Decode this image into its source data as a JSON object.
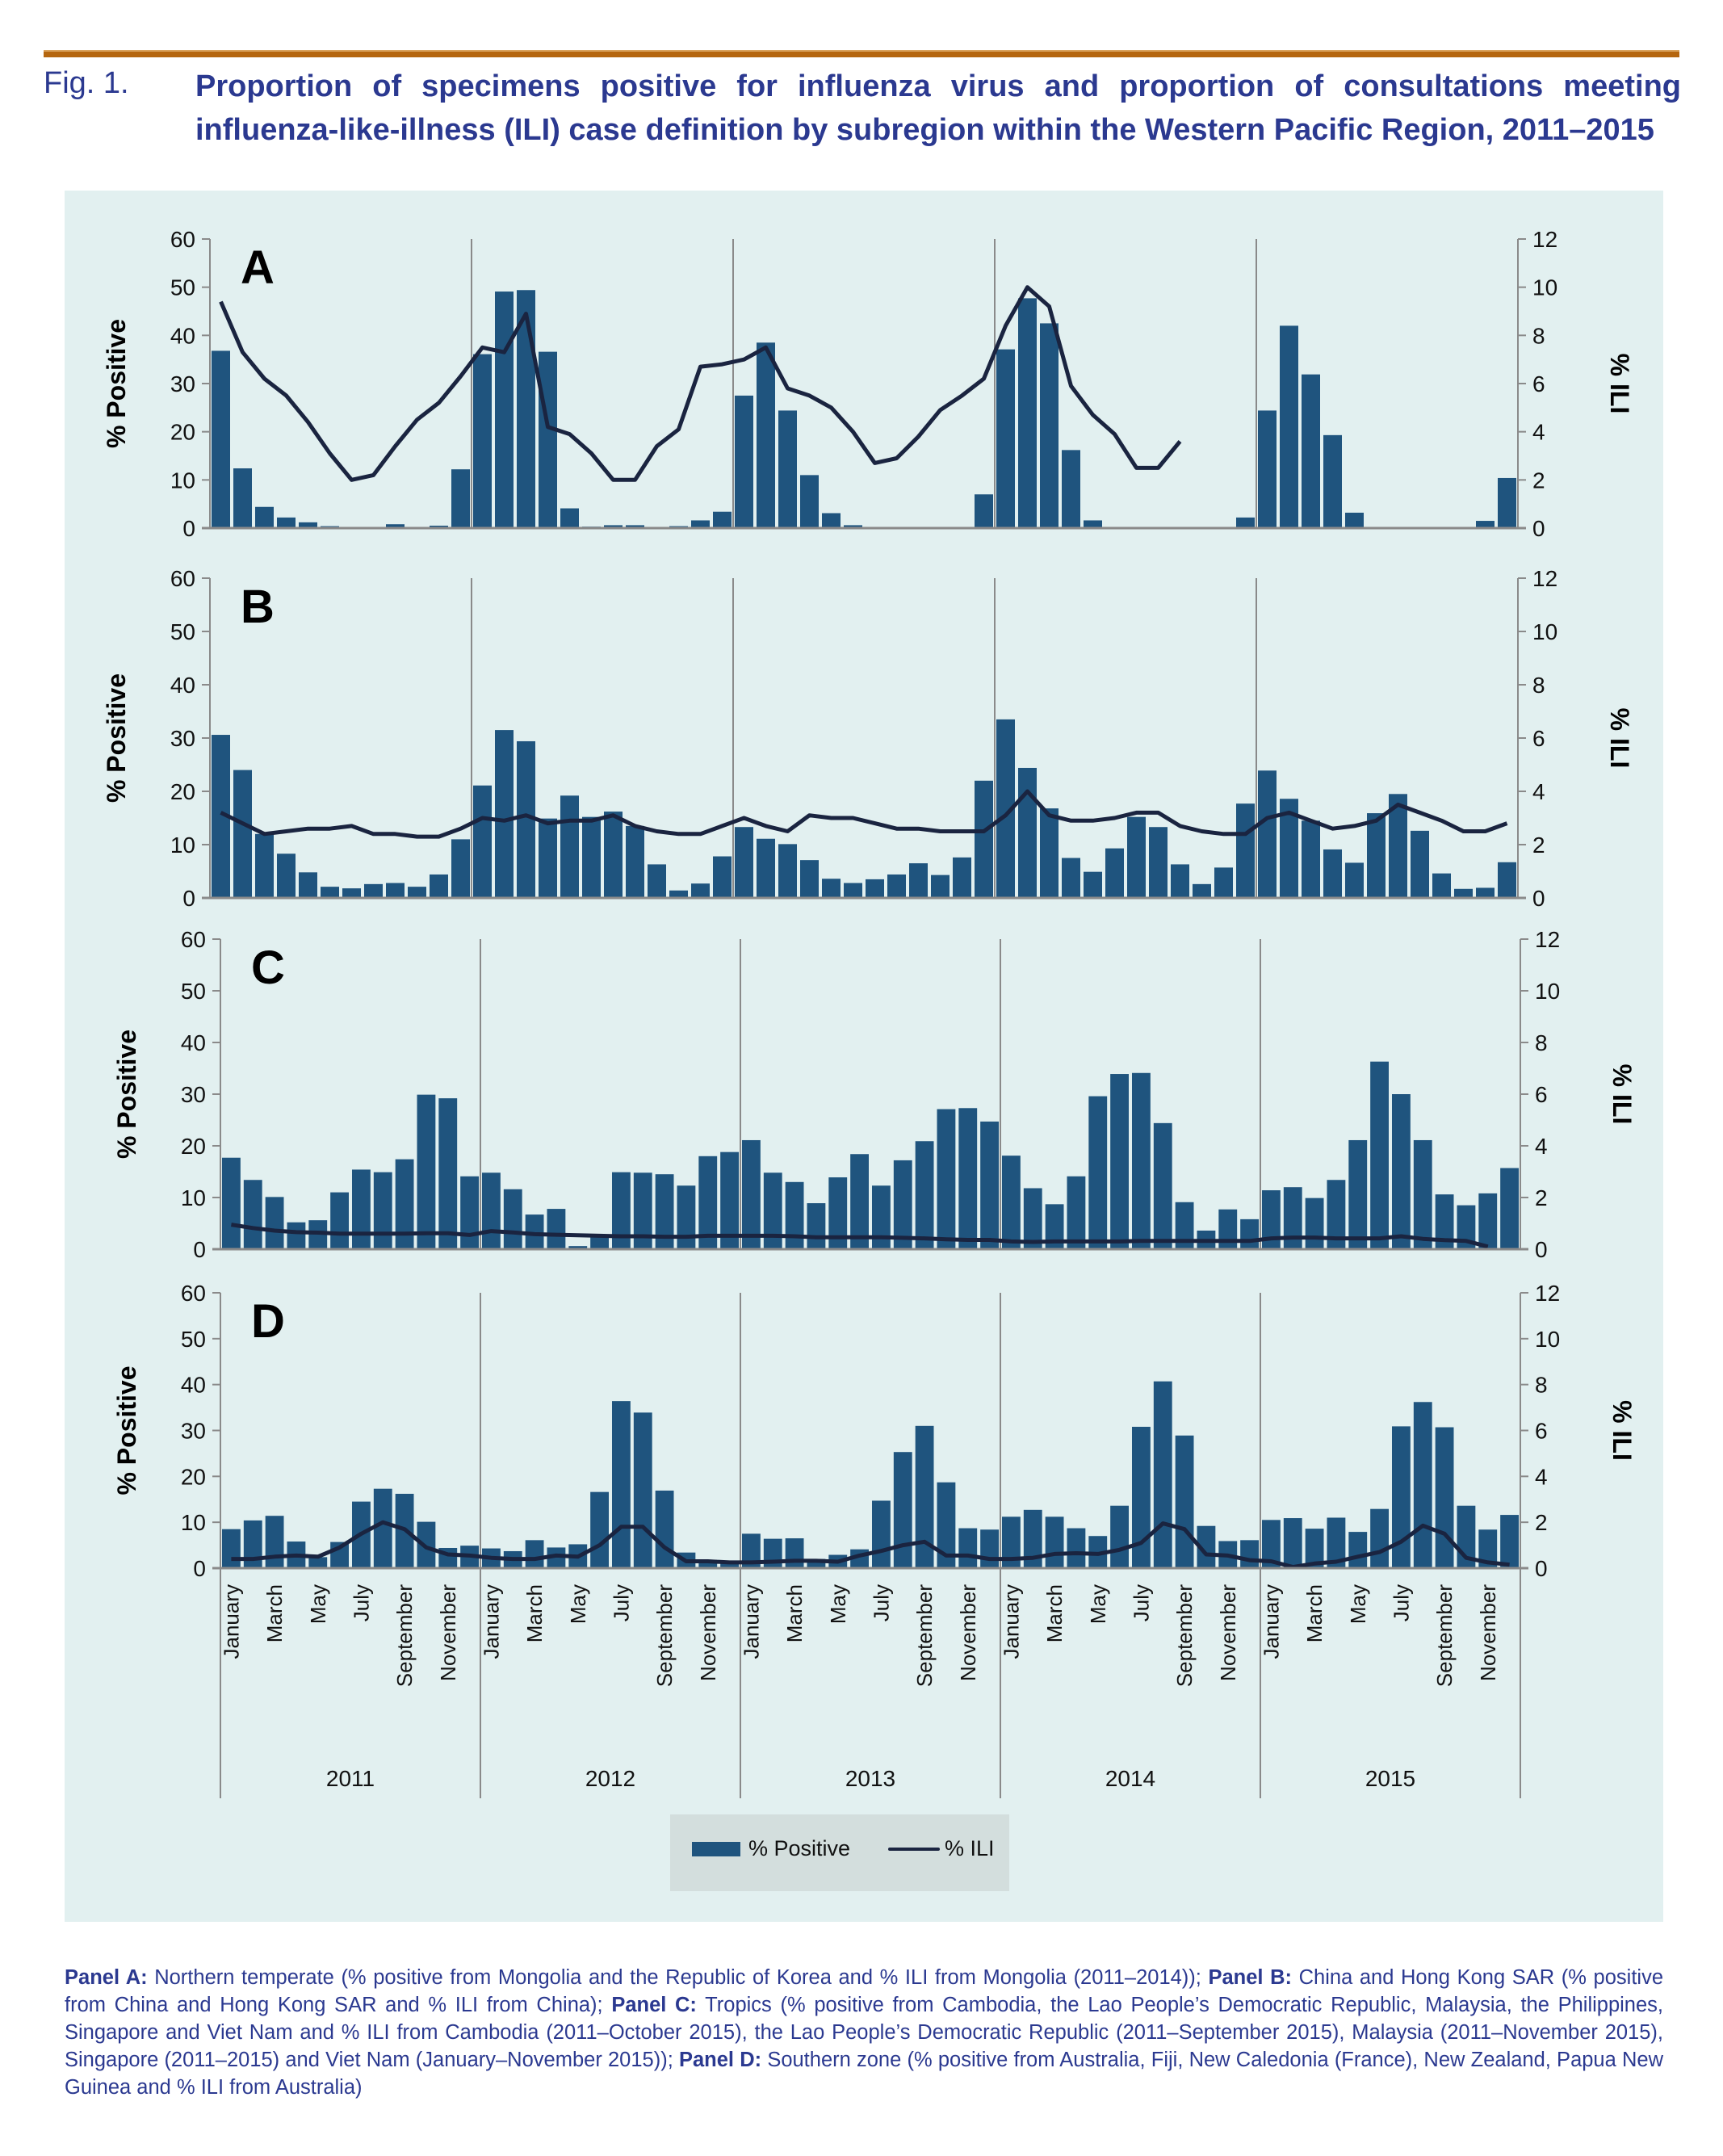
{
  "figure": {
    "label": "Fig. 1.",
    "title": "Proportion of specimens positive for influenza virus and proportion of consultations meeting influenza-like-illness (ILI) case definition by subregion within the Western Pacific Region, 2011–2015"
  },
  "legend": {
    "bar_label": "% Positive",
    "line_label": "% ILI"
  },
  "caption": {
    "segments": [
      {
        "bold": "Panel A:",
        "text": " Northern temperate (% positive from Mongolia and the Republic of Korea and % ILI from Mongolia (2011–2014)); "
      },
      {
        "bold": "Panel B:",
        "text": " China and Hong Kong SAR (% positive from China and Hong Kong SAR and % ILI from China); "
      },
      {
        "bold": "Panel C:",
        "text": " Tropics (% positive from Cambodia, the Lao People’s Democratic Republic, Malaysia, the Philippines, Singapore and Viet Nam and % ILI from Cambodia (2011–October 2015), the Lao People’s Democratic Republic (2011–September 2015), Malaysia (2011–November 2015), Singapore (2011–2015) and Viet Nam (January–November 2015)); "
      },
      {
        "bold": "Panel D:",
        "text": " Southern zone (% positive from Australia, Fiji, New Caledonia (France), New Zealand, Papua New Guinea and % ILI from Australia)"
      }
    ]
  },
  "chart_data": [
    {
      "type": "bar+line",
      "panel": "A",
      "ylabel": "% Positive",
      "y2label": "% ILI",
      "ylim": [
        0,
        60
      ],
      "y2lim": [
        0,
        12
      ],
      "yticks": [
        0,
        10,
        20,
        30,
        40,
        50,
        60
      ],
      "y2ticks": [
        0,
        2,
        4,
        6,
        8,
        10,
        12
      ],
      "positive": [
        36.8,
        12.4,
        4.4,
        2.2,
        1.2,
        0.4,
        0,
        0,
        0.8,
        0,
        0.5,
        12.2,
        36.1,
        49.1,
        49.4,
        36.6,
        4.1,
        0.3,
        0.6,
        0.6,
        0,
        0.4,
        1.6,
        3.4,
        27.5,
        38.5,
        24.4,
        11.0,
        3.1,
        0.6,
        0,
        0,
        0,
        0,
        0.1,
        7.0,
        37.1,
        47.7,
        42.5,
        16.2,
        1.6,
        0.1,
        0.1,
        0,
        0,
        0,
        0,
        2.2,
        24.4,
        42.0,
        31.9,
        19.3,
        3.2,
        0.2,
        0,
        0,
        0.1,
        0,
        1.5,
        10.4
      ],
      "ili": [
        9.4,
        7.3,
        6.2,
        5.5,
        4.4,
        3.1,
        2.0,
        2.2,
        3.4,
        4.5,
        5.2,
        6.3,
        7.5,
        7.3,
        8.9,
        4.2,
        3.9,
        3.1,
        2.0,
        2.0,
        3.4,
        4.1,
        6.7,
        6.8,
        7.0,
        7.5,
        5.8,
        5.5,
        5.0,
        4.0,
        2.7,
        2.9,
        3.8,
        4.9,
        5.5,
        6.2,
        8.4,
        10.0,
        9.2,
        5.9,
        4.7,
        3.9,
        2.5,
        2.5,
        3.6,
        null,
        null,
        null,
        null,
        null,
        null,
        null,
        null,
        null,
        null,
        null,
        null,
        null,
        null,
        null
      ]
    },
    {
      "type": "bar+line",
      "panel": "B",
      "ylabel": "% Positive",
      "y2label": "% ILI",
      "ylim": [
        0,
        60
      ],
      "y2lim": [
        0,
        12
      ],
      "yticks": [
        0,
        10,
        20,
        30,
        40,
        50,
        60
      ],
      "y2ticks": [
        0,
        2,
        4,
        6,
        8,
        10,
        12
      ],
      "positive": [
        30.6,
        24.0,
        12.0,
        8.3,
        4.8,
        2.1,
        1.8,
        2.6,
        2.8,
        2.1,
        4.4,
        11.0,
        21.1,
        31.5,
        29.4,
        14.9,
        19.2,
        15.2,
        16.2,
        13.5,
        6.3,
        1.4,
        2.7,
        7.8,
        13.3,
        11.1,
        10.1,
        7.1,
        3.6,
        2.8,
        3.5,
        4.4,
        6.5,
        4.3,
        7.6,
        22.0,
        33.5,
        24.4,
        16.8,
        7.5,
        4.9,
        9.3,
        15.2,
        13.3,
        6.3,
        2.6,
        5.7,
        17.7,
        23.9,
        18.6,
        14.5,
        9.1,
        6.6,
        15.9,
        19.5,
        12.6,
        4.6,
        1.7,
        1.9,
        6.7
      ],
      "ili": [
        3.2,
        2.8,
        2.4,
        2.5,
        2.6,
        2.6,
        2.7,
        2.4,
        2.4,
        2.3,
        2.3,
        2.6,
        3.0,
        2.9,
        3.1,
        2.8,
        2.9,
        2.9,
        3.1,
        2.7,
        2.5,
        2.4,
        2.4,
        2.7,
        3.0,
        2.7,
        2.5,
        3.1,
        3.0,
        3.0,
        2.8,
        2.6,
        2.6,
        2.5,
        2.5,
        2.5,
        3.1,
        4.0,
        3.1,
        2.9,
        2.9,
        3.0,
        3.2,
        3.2,
        2.7,
        2.5,
        2.4,
        2.4,
        3.0,
        3.2,
        2.9,
        2.6,
        2.7,
        2.9,
        3.5,
        3.2,
        2.9,
        2.5,
        2.5,
        2.8
      ]
    },
    {
      "type": "bar+line",
      "panel": "C",
      "ylabel": "% Positive",
      "y2label": "% ILI",
      "ylim": [
        0,
        60
      ],
      "y2lim": [
        0,
        12
      ],
      "yticks": [
        0,
        10,
        20,
        30,
        40,
        50,
        60
      ],
      "y2ticks": [
        0,
        2,
        4,
        6,
        8,
        10,
        12
      ],
      "positive": [
        17.7,
        13.4,
        10.1,
        5.2,
        5.6,
        11.0,
        15.4,
        14.9,
        17.4,
        29.9,
        29.2,
        14.1,
        14.8,
        11.6,
        6.7,
        7.8,
        0.6,
        2.4,
        14.9,
        14.8,
        14.5,
        12.3,
        18.0,
        18.8,
        21.1,
        14.8,
        13.0,
        8.9,
        13.9,
        18.4,
        12.3,
        17.2,
        20.9,
        27.1,
        27.3,
        24.7,
        18.1,
        11.8,
        8.7,
        14.1,
        29.6,
        33.9,
        34.1,
        24.4,
        9.1,
        3.6,
        7.7,
        5.8,
        11.4,
        12.0,
        9.9,
        13.4,
        21.1,
        36.3,
        30.0,
        21.1,
        10.6,
        8.5,
        10.8,
        15.7
      ],
      "ili": [
        0.95,
        0.82,
        0.72,
        0.66,
        0.64,
        0.6,
        0.6,
        0.6,
        0.6,
        0.62,
        0.62,
        0.55,
        0.7,
        0.65,
        0.58,
        0.56,
        0.54,
        0.52,
        0.5,
        0.5,
        0.48,
        0.48,
        0.52,
        0.52,
        0.52,
        0.52,
        0.5,
        0.46,
        0.46,
        0.46,
        0.46,
        0.44,
        0.42,
        0.38,
        0.36,
        0.36,
        0.3,
        0.28,
        0.3,
        0.3,
        0.3,
        0.3,
        0.32,
        0.32,
        0.32,
        0.32,
        0.32,
        0.32,
        0.42,
        0.45,
        0.45,
        0.42,
        0.42,
        0.42,
        0.5,
        0.4,
        0.35,
        0.32,
        0.1,
        null
      ]
    },
    {
      "type": "bar+line",
      "panel": "D",
      "ylabel": "% Positive",
      "y2label": "% ILI",
      "ylim": [
        0,
        60
      ],
      "y2lim": [
        0,
        12
      ],
      "yticks": [
        0,
        10,
        20,
        30,
        40,
        50,
        60
      ],
      "y2ticks": [
        0,
        2,
        4,
        6,
        8,
        10,
        12
      ],
      "positive": [
        8.5,
        10.4,
        11.4,
        5.8,
        2.4,
        5.7,
        14.5,
        17.3,
        16.2,
        10.1,
        4.4,
        4.9,
        4.3,
        3.7,
        6.1,
        4.5,
        5.2,
        16.6,
        36.4,
        33.9,
        16.9,
        3.4,
        1.8,
        1.3,
        7.5,
        6.4,
        6.5,
        2.0,
        2.9,
        4.1,
        14.7,
        25.3,
        31.0,
        18.7,
        8.7,
        8.4,
        11.2,
        12.7,
        11.2,
        8.7,
        7.0,
        13.6,
        30.8,
        40.7,
        28.9,
        9.2,
        5.9,
        6.1,
        10.5,
        10.9,
        8.6,
        11.0,
        7.9,
        12.9,
        30.9,
        36.2,
        30.7,
        13.6,
        8.4,
        11.6
      ],
      "ili": [
        0.4,
        0.4,
        0.5,
        0.55,
        0.5,
        0.9,
        1.5,
        2.0,
        1.7,
        0.9,
        0.6,
        0.55,
        0.45,
        0.4,
        0.4,
        0.55,
        0.5,
        1.0,
        1.8,
        1.8,
        0.9,
        0.3,
        0.3,
        0.25,
        0.25,
        0.28,
        0.32,
        0.32,
        0.28,
        0.55,
        0.75,
        1.0,
        1.15,
        0.55,
        0.55,
        0.4,
        0.4,
        0.45,
        0.62,
        0.65,
        0.62,
        0.8,
        1.1,
        1.95,
        1.7,
        0.6,
        0.55,
        0.35,
        0.3,
        0.05,
        0.2,
        0.28,
        0.5,
        0.7,
        1.15,
        1.85,
        1.5,
        0.45,
        0.25,
        0.15
      ]
    }
  ],
  "xaxis": {
    "month_labels": [
      "January",
      "March",
      "May",
      "July",
      "September",
      "November"
    ],
    "years": [
      "2011",
      "2012",
      "2013",
      "2014",
      "2015"
    ]
  },
  "colors": {
    "bar": "#1f547e",
    "line": "#1a2440",
    "background": "#e2f0f0",
    "title": "#2b3990",
    "rule": "#b5660f"
  }
}
